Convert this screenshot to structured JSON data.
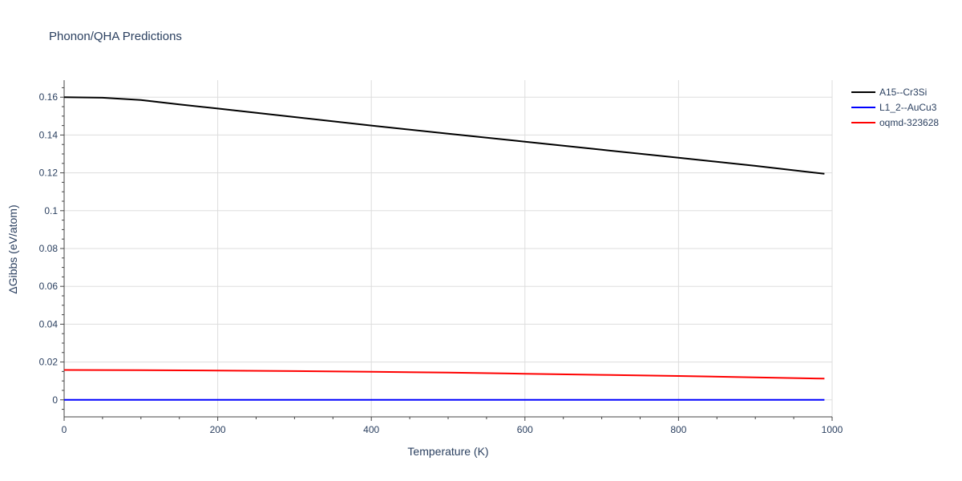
{
  "chart_data": {
    "type": "line",
    "title": "Phonon/QHA Predictions",
    "xlabel": "Temperature (K)",
    "ylabel": "ΔGibbs (eV/atom)",
    "xlim": [
      0,
      1000
    ],
    "ylim": [
      -0.009,
      0.169
    ],
    "xticks": [
      0,
      200,
      400,
      600,
      800,
      1000
    ],
    "xtick_labels": [
      "0",
      "200",
      "400",
      "600",
      "800",
      "1000"
    ],
    "yticks": [
      0,
      0.02,
      0.04,
      0.06,
      0.08,
      0.1,
      0.12,
      0.14,
      0.16
    ],
    "ytick_labels": [
      "0",
      "0.02",
      "0.04",
      "0.06",
      "0.08",
      "0.1",
      "0.12",
      "0.14",
      "0.16"
    ],
    "grid": true,
    "legend_position": "top-right",
    "series": [
      {
        "name": "A15--Cr3Si",
        "color": "#000000",
        "x": [
          0,
          50,
          100,
          150,
          200,
          300,
          400,
          500,
          600,
          700,
          800,
          900,
          990
        ],
        "y": [
          0.16,
          0.1597,
          0.1585,
          0.1562,
          0.154,
          0.1495,
          0.145,
          0.1407,
          0.1365,
          0.1322,
          0.128,
          0.1237,
          0.1195
        ]
      },
      {
        "name": "L1_2--AuCu3",
        "color": "#0000ff",
        "x": [
          0,
          990
        ],
        "y": [
          0,
          0
        ]
      },
      {
        "name": "oqmd-323628",
        "color": "#ff0000",
        "x": [
          0,
          100,
          200,
          300,
          400,
          500,
          600,
          700,
          800,
          900,
          990
        ],
        "y": [
          0.0158,
          0.0157,
          0.0155,
          0.0152,
          0.0148,
          0.0144,
          0.0138,
          0.0132,
          0.0126,
          0.0119,
          0.0112
        ]
      }
    ]
  }
}
